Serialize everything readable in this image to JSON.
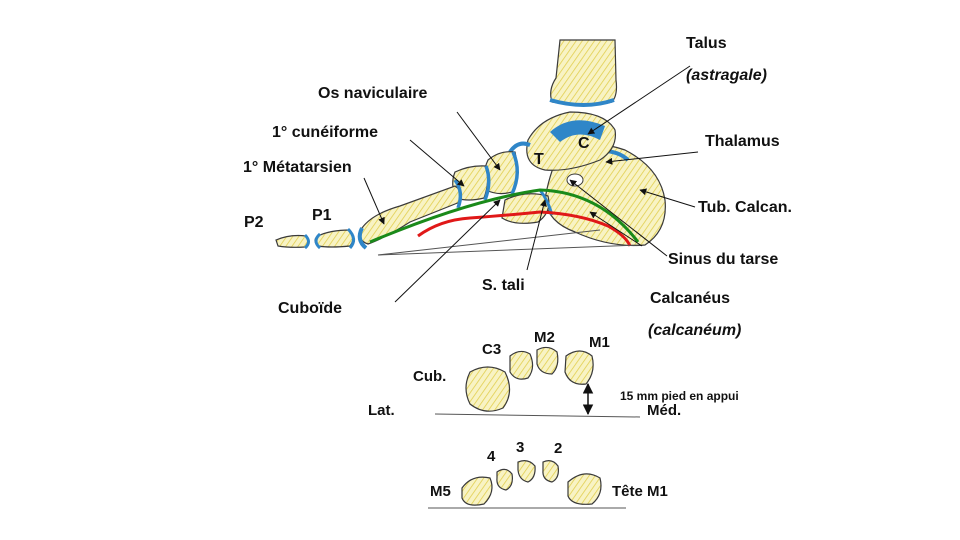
{
  "labels": {
    "talus": "Talus",
    "astragale": "(astragale)",
    "os_naviculaire": "Os naviculaire",
    "cuneiforme": "1° cunéiforme",
    "metatarsien": "1° Métatarsien",
    "thalamus": "Thalamus",
    "tub_calcan": "Tub. Calcan.",
    "sinus_tarse": "Sinus  du tarse",
    "p1": "P1",
    "p2": "P2",
    "bone_c": "C",
    "bone_t": "T",
    "s_tali": "S. tali",
    "cuboide": "Cuboïde",
    "calcaneus": "Calcanéus",
    "calcaneum": "(calcanéum)"
  },
  "section1": {
    "c3": "C3",
    "m2": "M2",
    "m1": "M1",
    "cub": "Cub.",
    "lat": "Lat.",
    "med": "Méd.",
    "measure": "15 mm pied en appui"
  },
  "section2": {
    "n4": "4",
    "n3": "3",
    "n2": "2",
    "m5": "M5",
    "tete_m1": "Tête M1"
  },
  "colors": {
    "bone_fill": "#f6f0b8",
    "bone_hatch": "#e3d25a",
    "cartilage": "#2f86c8",
    "arch_green": "#1a8a1a",
    "arch_red": "#e01818",
    "outline": "#3a3a3a"
  }
}
